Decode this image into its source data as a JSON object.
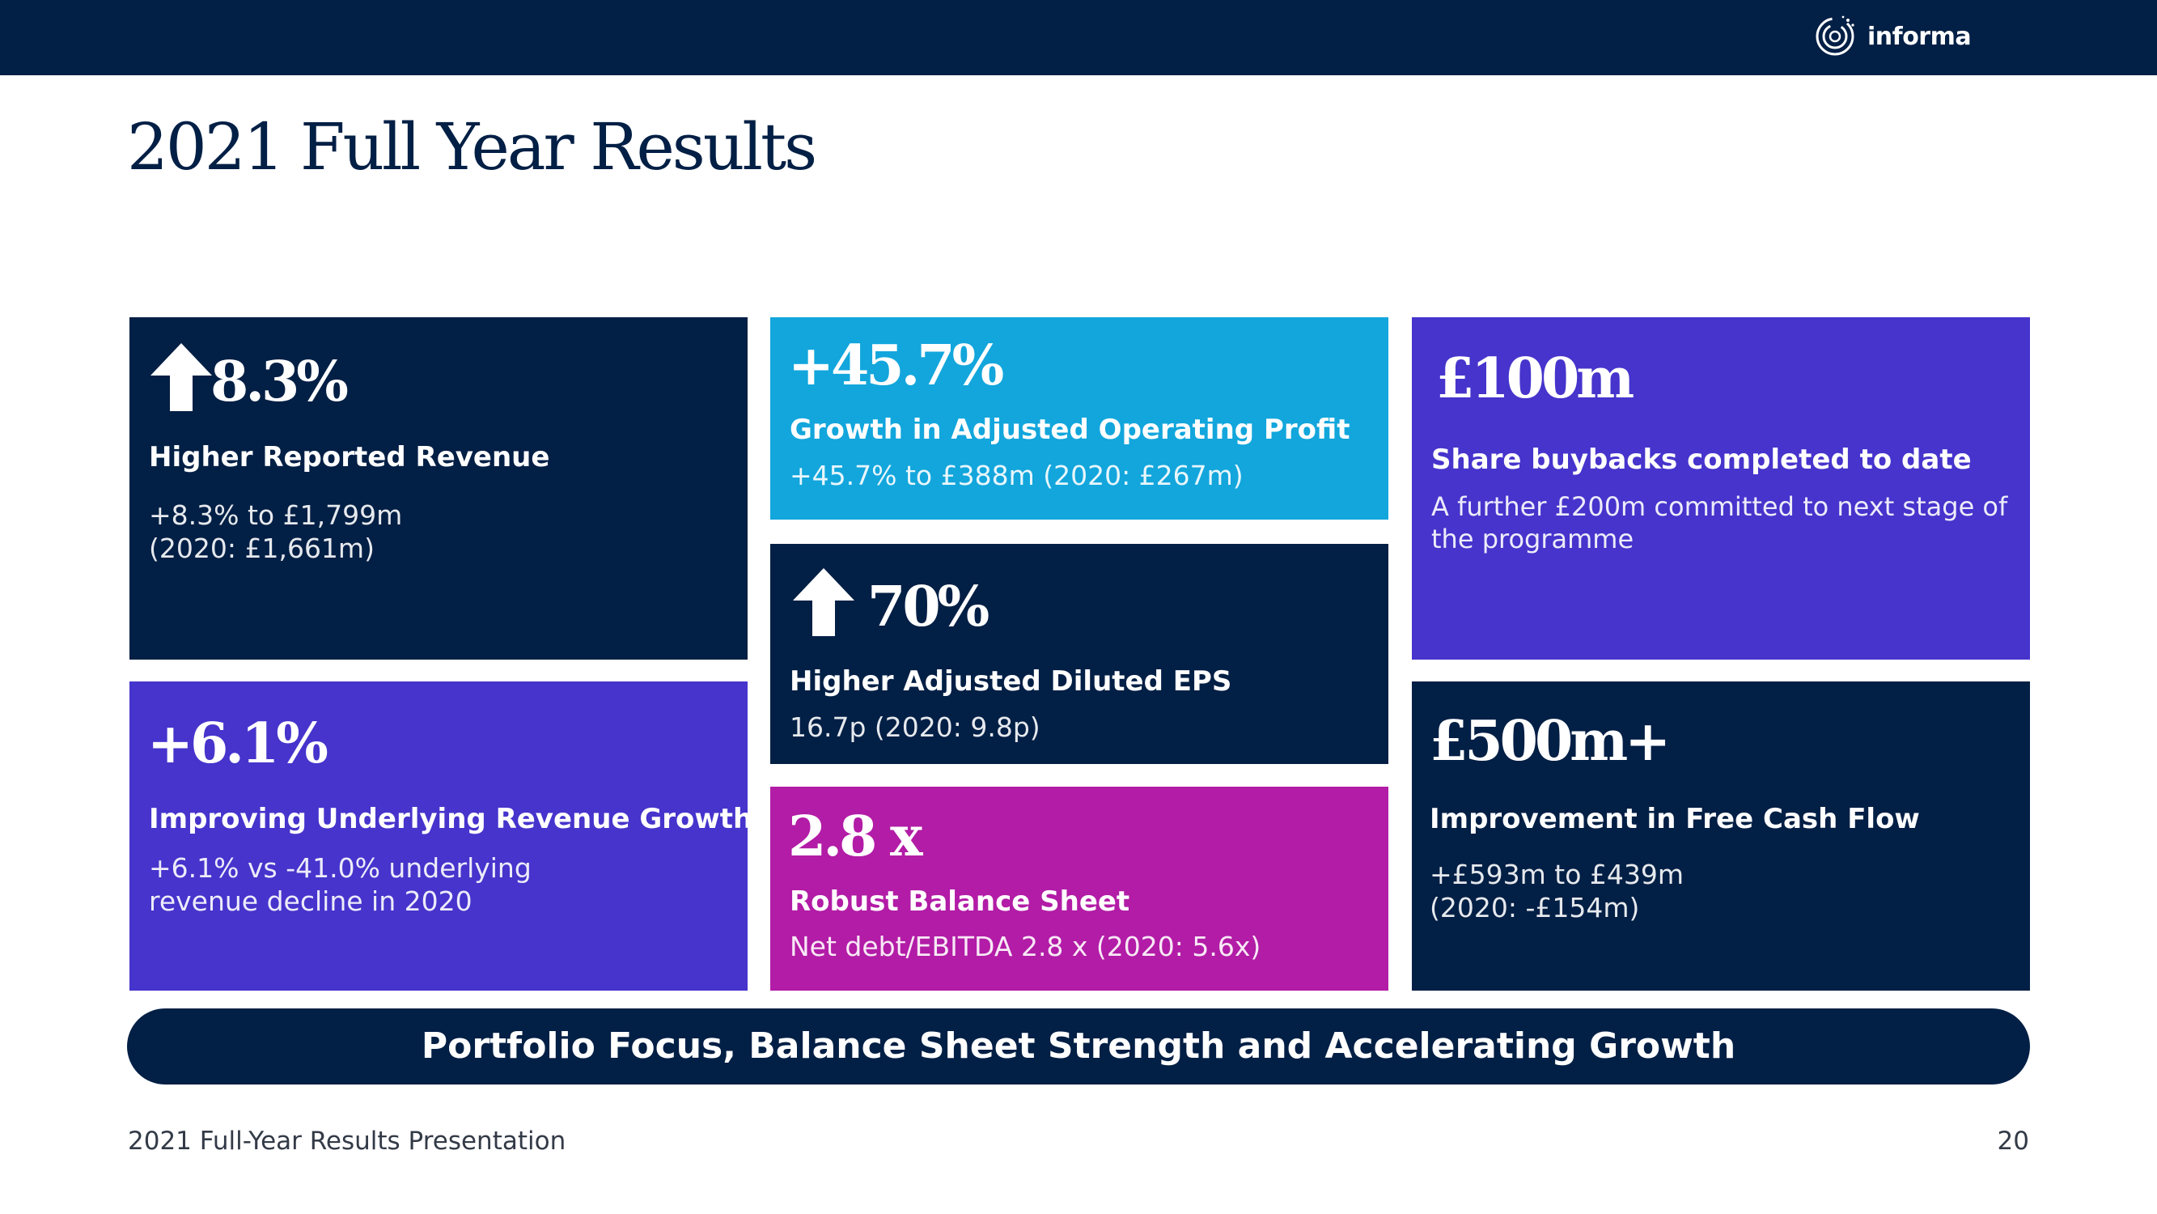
{
  "header": {
    "logo_text": "informa",
    "logo_icon": "informa-ring-logo",
    "bar_color": "#021f45"
  },
  "slide": {
    "title": "2021 Full Year Results"
  },
  "tiles": {
    "revenue": {
      "value": "8.3%",
      "heading": "Higher Reported Revenue",
      "description": "+8.3% to £1,799m\n(2020: £1,661m)",
      "icon": "up-arrow-icon",
      "color": "#021f45"
    },
    "underlying": {
      "value": "+6.1%",
      "heading": "Improving Underlying Revenue Growth",
      "description": "+6.1% vs -41.0% underlying\nrevenue decline in 2020",
      "color": "#4634cc"
    },
    "profit": {
      "value": "+45.7%",
      "heading": "Growth in Adjusted Operating Profit",
      "description": "+45.7% to £388m (2020: £267m)",
      "color": "#12a6dc"
    },
    "eps": {
      "value": "70%",
      "heading": "Higher Adjusted Diluted EPS",
      "description": "16.7p (2020: 9.8p)",
      "icon": "up-arrow-icon",
      "color": "#021f45"
    },
    "balance": {
      "value": "2.8 x",
      "heading": "Robust Balance Sheet",
      "description": "Net debt/EBITDA 2.8 x (2020: 5.6x)",
      "color": "#b21ca6"
    },
    "buybacks": {
      "value": "£100m",
      "heading": "Share buybacks completed to date",
      "description": "A further £200m committed to next stage of\nthe programme",
      "color": "#4634cc"
    },
    "cashflow": {
      "value": "£500m+",
      "heading": "Improvement in Free Cash Flow",
      "description": "+£593m to £439m\n(2020: -£154m)",
      "color": "#021f45"
    }
  },
  "banner": {
    "text": "Portfolio Focus, Balance Sheet Strength and Accelerating Growth"
  },
  "footer": {
    "presentation": "2021 Full-Year Results Presentation",
    "page_number": "20"
  }
}
